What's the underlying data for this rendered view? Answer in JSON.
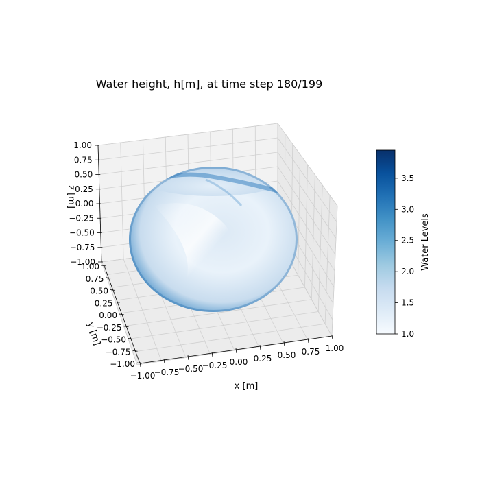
{
  "chart_data": {
    "type": "surface3d",
    "title": "Water height, h[m], at time step 180/199",
    "xlabel": "x [m]",
    "ylabel": "y [m]",
    "zlabel": "z [m]",
    "xlim": [
      -1.0,
      1.0
    ],
    "ylim": [
      -1.0,
      1.0
    ],
    "zlim": [
      -1.0,
      1.0
    ],
    "xticks": [
      "−1.00",
      "−0.75",
      "−0.50",
      "−0.25",
      "0.00",
      "0.25",
      "0.50",
      "0.75",
      "1.00"
    ],
    "yticks": [
      "−1.00",
      "−0.75",
      "−0.50",
      "−0.25",
      "0.00",
      "0.25",
      "0.50",
      "0.75",
      "1.00"
    ],
    "zticks": [
      "−1.00",
      "−0.75",
      "−0.50",
      "−0.25",
      "0.00",
      "0.25",
      "0.50",
      "0.75",
      "1.00"
    ],
    "grid": true,
    "surface": "sphere",
    "colormap": "Blues",
    "colorbar": {
      "label": "Water Levels",
      "range": [
        1.0,
        3.95
      ],
      "ticks": [
        "1.0",
        "1.5",
        "2.0",
        "2.5",
        "3.0",
        "3.5"
      ],
      "tick_values": [
        1.0,
        1.5,
        2.0,
        2.5,
        3.0,
        3.5
      ]
    },
    "colors": {
      "pane": "#f2f2f2",
      "grid": "#d0d0d0",
      "cmap_low": "#f7fbff",
      "cmap_mid": "#6baed6",
      "cmap_high": "#08306b"
    }
  }
}
